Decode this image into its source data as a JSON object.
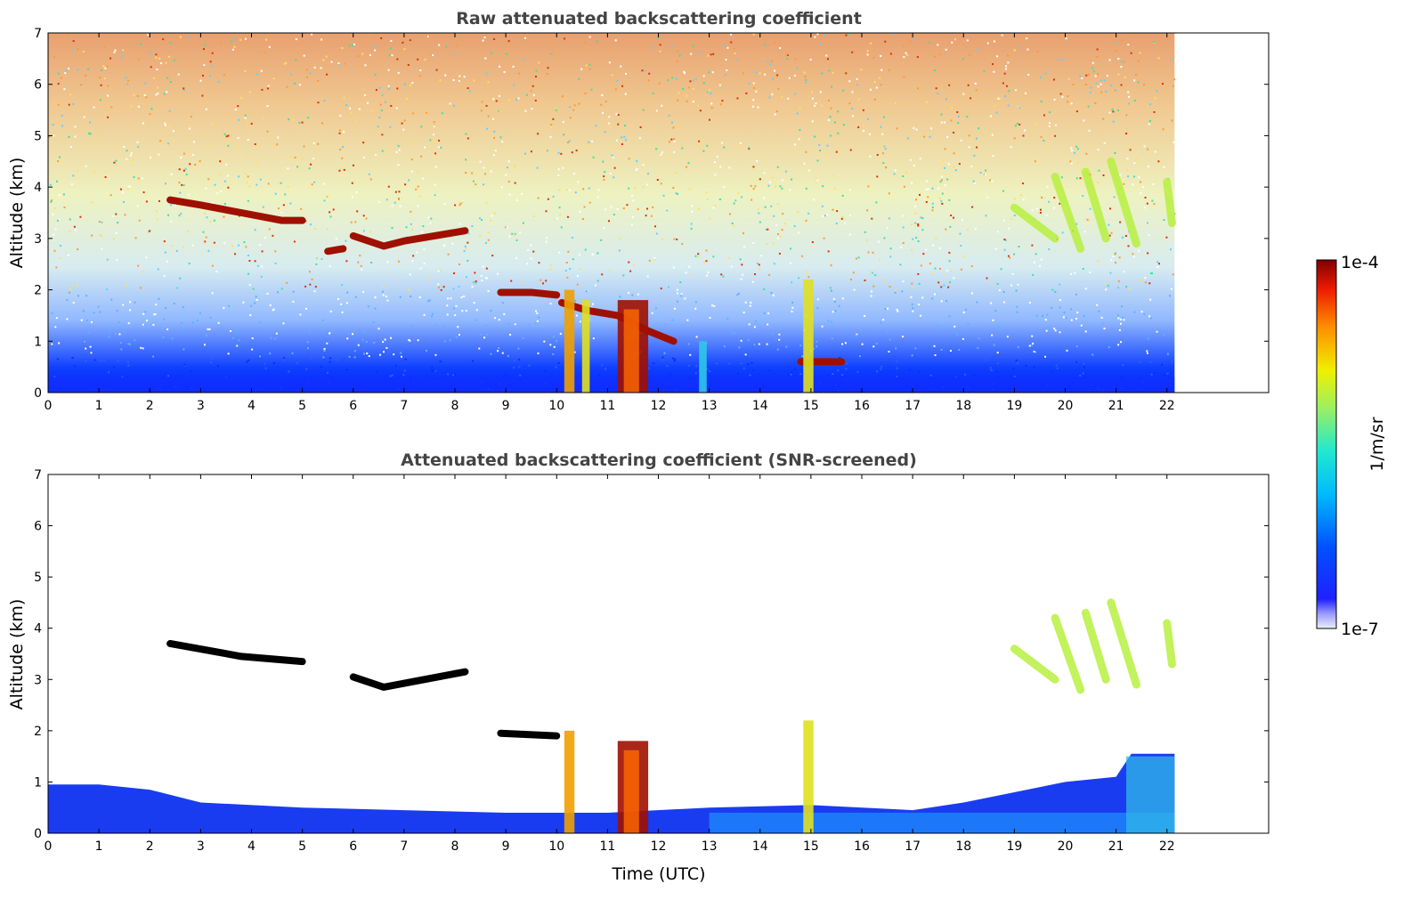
{
  "chart_data": [
    {
      "type": "heatmap",
      "title": "Raw attenuated backscattering coefficient",
      "xlabel": "",
      "ylabel": "Altitude (km)",
      "xlim": [
        0,
        24
      ],
      "ylim": [
        0,
        7
      ],
      "xticks": [
        "0",
        "1",
        "2",
        "3",
        "4",
        "5",
        "6",
        "7",
        "8",
        "9",
        "10",
        "11",
        "12",
        "13",
        "14",
        "15",
        "16",
        "17",
        "18",
        "19",
        "20",
        "21",
        "22"
      ],
      "yticks": [
        "0",
        "1",
        "2",
        "3",
        "4",
        "5",
        "6",
        "7"
      ],
      "data_end_time": 22.15,
      "background": "noise increasing with altitude (blue near surface, yellow-red aloft)",
      "features": [
        {
          "kind": "cloud_layer",
          "points": [
            [
              2.4,
              3.75
            ],
            [
              3.0,
              3.65
            ],
            [
              3.8,
              3.5
            ],
            [
              4.6,
              3.35
            ],
            [
              5.0,
              3.35
            ]
          ],
          "value": "1e-4"
        },
        {
          "kind": "cloud_layer",
          "points": [
            [
              6.0,
              3.05
            ],
            [
              6.6,
              2.85
            ],
            [
              7.0,
              2.95
            ],
            [
              7.6,
              3.05
            ],
            [
              8.2,
              3.15
            ]
          ],
          "value": "1e-4"
        },
        {
          "kind": "cloud_layer",
          "points": [
            [
              5.5,
              2.75
            ],
            [
              5.8,
              2.8
            ]
          ],
          "value": "1e-4"
        },
        {
          "kind": "cloud_layer",
          "points": [
            [
              8.9,
              1.95
            ],
            [
              9.5,
              1.95
            ],
            [
              10.0,
              1.9
            ]
          ],
          "value": "1e-4"
        },
        {
          "kind": "cloud_layer",
          "points": [
            [
              10.1,
              1.75
            ],
            [
              10.6,
              1.6
            ],
            [
              11.2,
              1.5
            ],
            [
              11.8,
              1.2
            ],
            [
              12.3,
              1.0
            ]
          ],
          "value": "1e-4"
        },
        {
          "kind": "cloud_layer",
          "points": [
            [
              14.8,
              0.6
            ],
            [
              15.2,
              0.6
            ],
            [
              15.6,
              0.6
            ]
          ],
          "value": "1e-4"
        },
        {
          "kind": "precip_column",
          "x": [
            10.15,
            10.35
          ],
          "top": 2.0,
          "value": "5e-5"
        },
        {
          "kind": "precip_column",
          "x": [
            10.5,
            10.65
          ],
          "top": 1.8,
          "value": "3e-5"
        },
        {
          "kind": "precip_column",
          "x": [
            11.2,
            11.8
          ],
          "top": 1.8,
          "value": "1e-4"
        },
        {
          "kind": "precip_column",
          "x": [
            12.8,
            12.95
          ],
          "top": 1.0,
          "value": "5e-6"
        },
        {
          "kind": "precip_column",
          "x": [
            14.85,
            15.05
          ],
          "top": 2.2,
          "value": "3e-5"
        },
        {
          "kind": "virga",
          "x": [
            19.0,
            21.5
          ],
          "altitude": [
            2.7,
            4.5
          ],
          "value": "2e-5"
        }
      ]
    },
    {
      "type": "heatmap",
      "title": "Attenuated backscattering coefficient (SNR-screened)",
      "xlabel": "Time (UTC)",
      "ylabel": "Altitude (km)",
      "xlim": [
        0,
        24
      ],
      "ylim": [
        0,
        7
      ],
      "xticks": [
        "0",
        "1",
        "2",
        "3",
        "4",
        "5",
        "6",
        "7",
        "8",
        "9",
        "10",
        "11",
        "12",
        "13",
        "14",
        "15",
        "16",
        "17",
        "18",
        "19",
        "20",
        "21",
        "22"
      ],
      "yticks": [
        "0",
        "1",
        "2",
        "3",
        "4",
        "5",
        "6",
        "7"
      ],
      "data_end_time": 22.15,
      "boundary_layer_top": [
        [
          0,
          0.95
        ],
        [
          1,
          0.95
        ],
        [
          2,
          0.85
        ],
        [
          3,
          0.6
        ],
        [
          5,
          0.5
        ],
        [
          7,
          0.45
        ],
        [
          9,
          0.4
        ],
        [
          11,
          0.4
        ],
        [
          13,
          0.5
        ],
        [
          15,
          0.55
        ],
        [
          17,
          0.45
        ],
        [
          18,
          0.6
        ],
        [
          19,
          0.8
        ],
        [
          20,
          1.0
        ],
        [
          21,
          1.1
        ],
        [
          21.3,
          1.55
        ],
        [
          22.15,
          1.55
        ]
      ],
      "features": [
        {
          "kind": "cloud_layer",
          "points": [
            [
              2.4,
              3.7
            ],
            [
              3.8,
              3.45
            ],
            [
              5.0,
              3.35
            ]
          ],
          "value": "masked"
        },
        {
          "kind": "cloud_layer",
          "points": [
            [
              6.0,
              3.05
            ],
            [
              6.6,
              2.85
            ],
            [
              8.2,
              3.15
            ]
          ],
          "value": "masked"
        },
        {
          "kind": "cloud_layer",
          "points": [
            [
              8.9,
              1.95
            ],
            [
              10.0,
              1.9
            ]
          ],
          "value": "masked"
        },
        {
          "kind": "precip_column",
          "x": [
            11.2,
            11.8
          ],
          "top": 1.8,
          "value": "1e-4"
        },
        {
          "kind": "precip_column",
          "x": [
            10.15,
            10.35
          ],
          "top": 2.0,
          "value": "5e-5"
        },
        {
          "kind": "precip_column",
          "x": [
            14.85,
            15.05
          ],
          "top": 2.2,
          "value": "3e-5"
        },
        {
          "kind": "virga",
          "x": [
            19.0,
            21.5
          ],
          "altitude": [
            2.7,
            4.5
          ],
          "value": "2e-5"
        }
      ]
    }
  ],
  "colorbar": {
    "label": "1/m/sr",
    "max_label": "1e-4",
    "min_label": "1e-7",
    "scale": "log",
    "colormap": "jet"
  },
  "text": {
    "title_top": "Raw attenuated backscattering coefficient",
    "title_bottom": "Attenuated backscattering coefficient (SNR-screened)",
    "ylabel": "Altitude (km)",
    "xlabel": "Time (UTC)"
  }
}
